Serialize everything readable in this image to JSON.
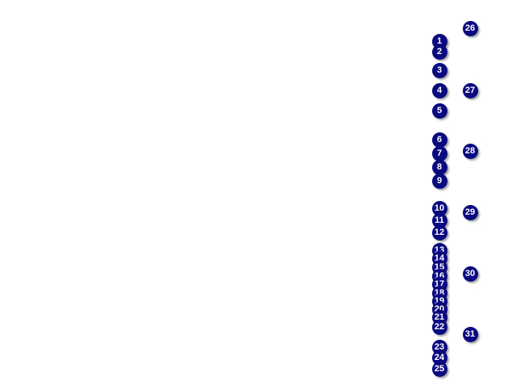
{
  "marker_color": "#0a0a80",
  "markers": [
    "1",
    "2",
    "3",
    "4",
    "5",
    "6",
    "7",
    "8",
    "9",
    "10",
    "11",
    "12",
    "13",
    "14",
    "15",
    "16",
    "17",
    "18",
    "19",
    "20",
    "21",
    "22",
    "23",
    "24",
    "25",
    "26",
    "27",
    "28",
    "29",
    "30",
    "31"
  ]
}
